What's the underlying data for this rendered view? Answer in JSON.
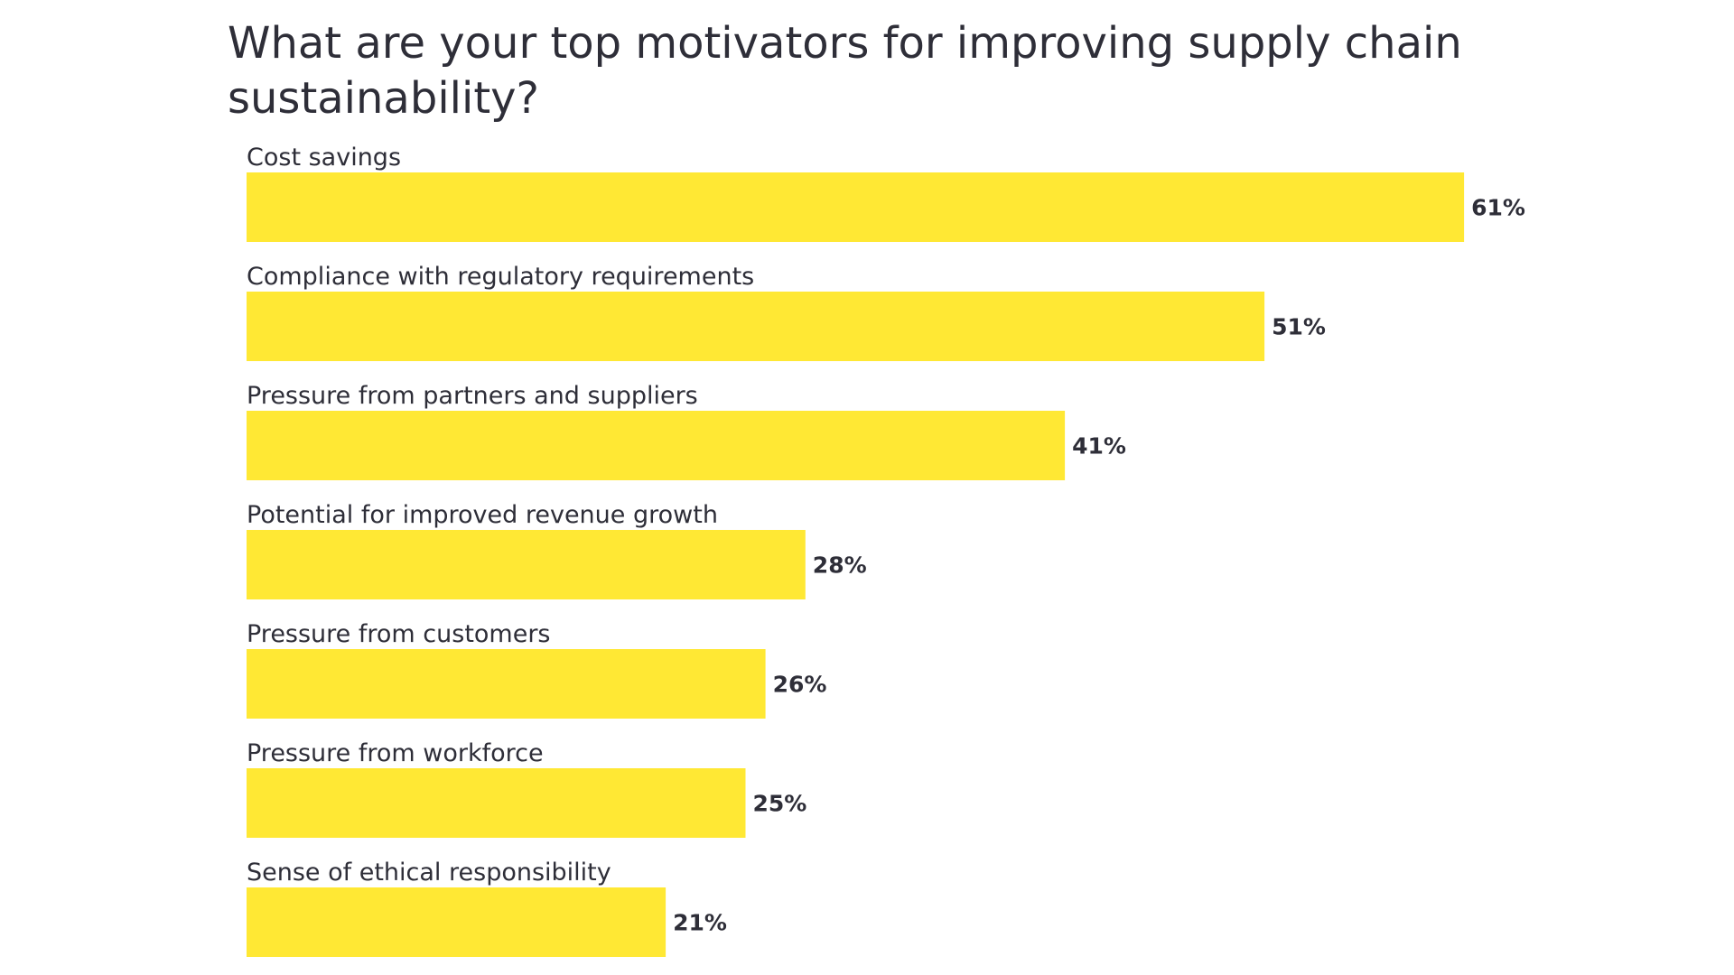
{
  "chart_data": {
    "type": "bar",
    "orientation": "horizontal",
    "title": "What are your top motivators for improving supply chain sustainability?",
    "categories": [
      "Cost savings",
      "Compliance with regulatory requirements",
      "Pressure from partners and suppliers",
      "Potential for improved revenue growth",
      "Pressure from customers",
      "Pressure from workforce",
      "Sense of ethical responsibility"
    ],
    "values": [
      61,
      51,
      41,
      28,
      26,
      25,
      21
    ],
    "value_labels": [
      "61%",
      "51%",
      "41%",
      "28%",
      "26%",
      "25%",
      "21%"
    ],
    "unit": "%",
    "xlim": [
      0,
      100
    ],
    "grid": false,
    "bar_color": "#ffe834",
    "text_color": "#2e2e38"
  }
}
